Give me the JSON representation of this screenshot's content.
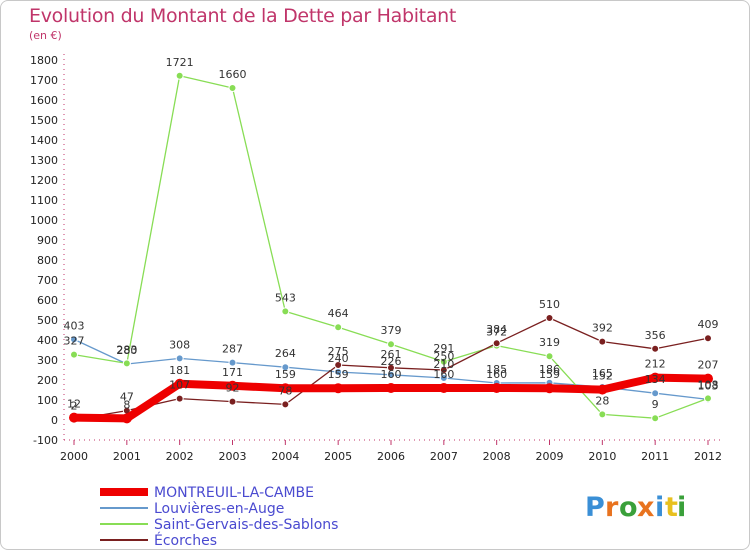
{
  "header": {
    "title": "Evolution du Montant de la Dette par Habitant",
    "subtitle": "(en €)"
  },
  "brand": {
    "letters": [
      "P",
      "r",
      "o",
      "x",
      "i",
      "t",
      "i"
    ],
    "colors": [
      "#3a8fd6",
      "#e8731f",
      "#3aa03a",
      "#e8731f",
      "#3a8fd6",
      "#e8c01f",
      "#3aa03a"
    ]
  },
  "chart_data": {
    "type": "line",
    "title": "Evolution du Montant de la Dette par Habitant",
    "subtitle": "(en €)",
    "x": [
      2000,
      2001,
      2002,
      2003,
      2004,
      2005,
      2006,
      2007,
      2008,
      2009,
      2010,
      2011,
      2012
    ],
    "ylim": [
      -100,
      1800
    ],
    "yticks": [
      -100,
      0,
      100,
      200,
      300,
      400,
      500,
      600,
      700,
      800,
      900,
      1000,
      1100,
      1200,
      1300,
      1400,
      1500,
      1600,
      1700,
      1800
    ],
    "grid": false,
    "legend_position": "bottom-left",
    "series": [
      {
        "name": "MONTREUIL-LA-CAMBE",
        "color": "#ee0000",
        "values": [
          12,
          8,
          181,
          171,
          159,
          159,
          160,
          160,
          160,
          159,
          152,
          212,
          207
        ],
        "labels": [
          "12",
          "8",
          "181",
          "171",
          "159",
          "159",
          "160",
          "160",
          "160",
          "159",
          "152",
          "212",
          "207"
        ]
      },
      {
        "name": "Louvières-en-Auge",
        "color": "#6699cc",
        "values": [
          403,
          280,
          308,
          287,
          264,
          240,
          226,
          210,
          185,
          186,
          165,
          134,
          103
        ],
        "labels": [
          "403",
          "280",
          "308",
          "287",
          "264",
          "240",
          "226",
          "210",
          "185",
          "186",
          "165",
          "134",
          "103"
        ]
      },
      {
        "name": "Saint-Gervais-des-Sablons",
        "color": "#88dd55",
        "values": [
          327,
          283,
          1721,
          1660,
          543,
          464,
          379,
          291,
          372,
          319,
          28,
          9,
          108
        ],
        "labels": [
          "327",
          "283",
          "1721",
          "1660",
          "543",
          "464",
          "379",
          "291",
          "372",
          "319",
          "28",
          "9",
          "108"
        ]
      },
      {
        "name": "Écorches",
        "color": "#7a2020",
        "values": [
          2,
          47,
          107,
          92,
          78,
          275,
          261,
          250,
          384,
          510,
          392,
          356,
          409
        ],
        "labels": [
          "2",
          "47",
          "107",
          "92",
          "78",
          "275",
          "261",
          "250",
          "384",
          "510",
          "392",
          "356",
          "409"
        ]
      }
    ]
  }
}
